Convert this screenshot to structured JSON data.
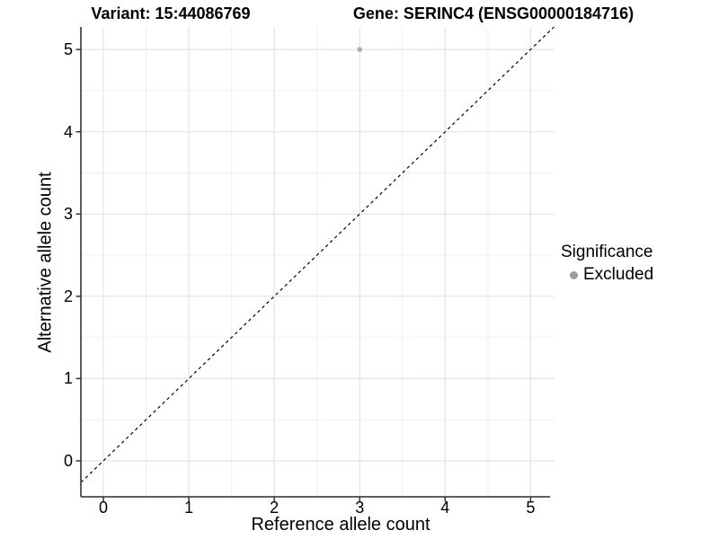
{
  "header": {
    "variant_title": "Variant: 15:44086769",
    "gene_title": "Gene: SERINC4 (ENSG00000184716)"
  },
  "chart_data": {
    "type": "scatter",
    "titles": [
      "Variant: 15:44086769",
      "Gene: SERINC4 (ENSG00000184716)"
    ],
    "xlabel": "Reference allele count",
    "ylabel": "Alternative allele count",
    "xlim": [
      -0.263,
      5.28
    ],
    "ylim": [
      -0.437,
      5.274
    ],
    "x_ticks": [
      0,
      1,
      2,
      3,
      4,
      5
    ],
    "y_ticks": [
      0,
      1,
      2,
      3,
      4,
      5
    ],
    "grid": "major-and-minor",
    "points": [
      {
        "x": 3,
        "y": 5,
        "significance": "Excluded"
      }
    ],
    "identity_line": {
      "slope": 1,
      "intercept": 0,
      "style": "dashed",
      "label": "y = x"
    },
    "legend": {
      "title": "Significance",
      "position": "right",
      "entries": [
        {
          "label": "Excluded",
          "color": "#a3a3a3"
        }
      ]
    }
  },
  "colors": {
    "background": "#ffffff",
    "grid_major": "#e4e4e4",
    "grid_minor": "#f0f0f0",
    "axis_line": "#4a4a4a",
    "tick_mark": "#333333",
    "identity_line": "#000000",
    "point": "#aeaeae",
    "legend_point": "#9c9c9c",
    "text": "#000000"
  }
}
